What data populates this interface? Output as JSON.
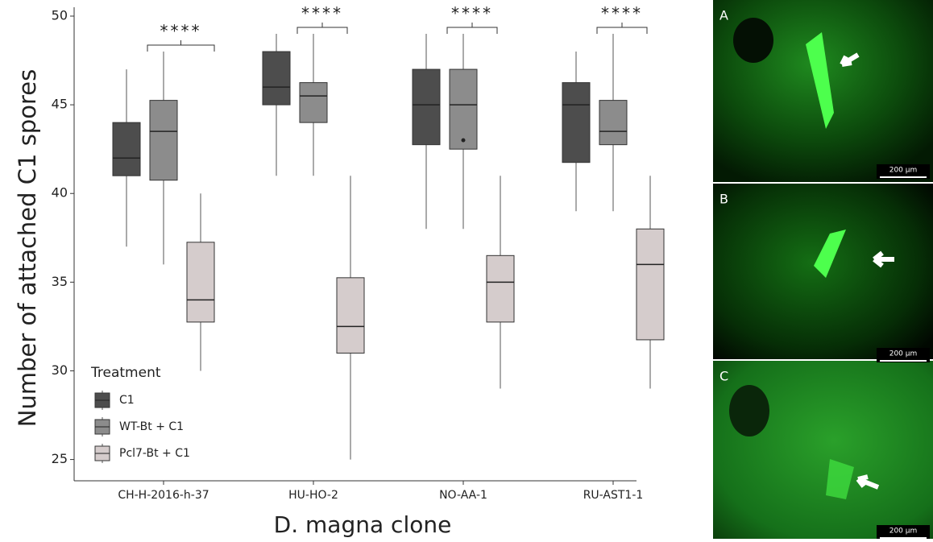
{
  "chart_data": {
    "type": "box",
    "y_label": "Number of attached C1 spores",
    "x_label": "D. magna clone",
    "categories": [
      "CH-H-2016-h-37",
      "HU-HO-2",
      "NO-AA-1",
      "RU-AST1-1"
    ],
    "ylim": [
      23.8,
      50.5
    ],
    "yticks": [
      25,
      30,
      35,
      40,
      45,
      50
    ],
    "legend_title": "Treatment",
    "series": [
      {
        "name": "C1",
        "color": "#4d4d4d",
        "values": [
          {
            "whisker_low": 37,
            "q1": 41,
            "median": 42,
            "q3": 44,
            "whisker_high": 47
          },
          {
            "whisker_low": 41,
            "q1": 45,
            "median": 46,
            "q3": 48,
            "whisker_high": 49
          },
          {
            "whisker_low": 38,
            "q1": 42.75,
            "median": 45,
            "q3": 47,
            "whisker_high": 49
          },
          {
            "whisker_low": 39,
            "q1": 41.75,
            "median": 45,
            "q3": 46.25,
            "whisker_high": 48
          }
        ]
      },
      {
        "name": "WT-Bt + C1",
        "color": "#8c8c8c",
        "values": [
          {
            "whisker_low": 36,
            "q1": 40.75,
            "median": 43.5,
            "q3": 45.25,
            "whisker_high": 48
          },
          {
            "whisker_low": 41,
            "q1": 44,
            "median": 45.5,
            "q3": 46.25,
            "whisker_high": 49
          },
          {
            "whisker_low": 38,
            "q1": 42.5,
            "median": 45,
            "q3": 47,
            "whisker_high": 49,
            "outliers": [
              43
            ]
          },
          {
            "whisker_low": 39,
            "q1": 42.75,
            "median": 43.5,
            "q3": 45.25,
            "whisker_high": 49
          }
        ]
      },
      {
        "name": "Pcl7-Bt + C1",
        "color": "#d5cccc",
        "values": [
          {
            "whisker_low": 30,
            "q1": 32.75,
            "median": 34,
            "q3": 37.25,
            "whisker_high": 40
          },
          {
            "whisker_low": 25,
            "q1": 31,
            "median": 32.5,
            "q3": 35.25,
            "whisker_high": 41
          },
          {
            "whisker_low": 29,
            "q1": 32.75,
            "median": 35,
            "q3": 36.5,
            "whisker_high": 41
          },
          {
            "whisker_low": 29,
            "q1": 31.75,
            "median": 36,
            "q3": 38,
            "whisker_high": 41
          }
        ]
      }
    ],
    "significance": [
      "****",
      "****",
      "****",
      "****"
    ]
  },
  "panels": [
    {
      "label": "A",
      "scale": "200 µm"
    },
    {
      "label": "B",
      "scale": "200 µm"
    },
    {
      "label": "C",
      "scale": "200 µm"
    }
  ]
}
